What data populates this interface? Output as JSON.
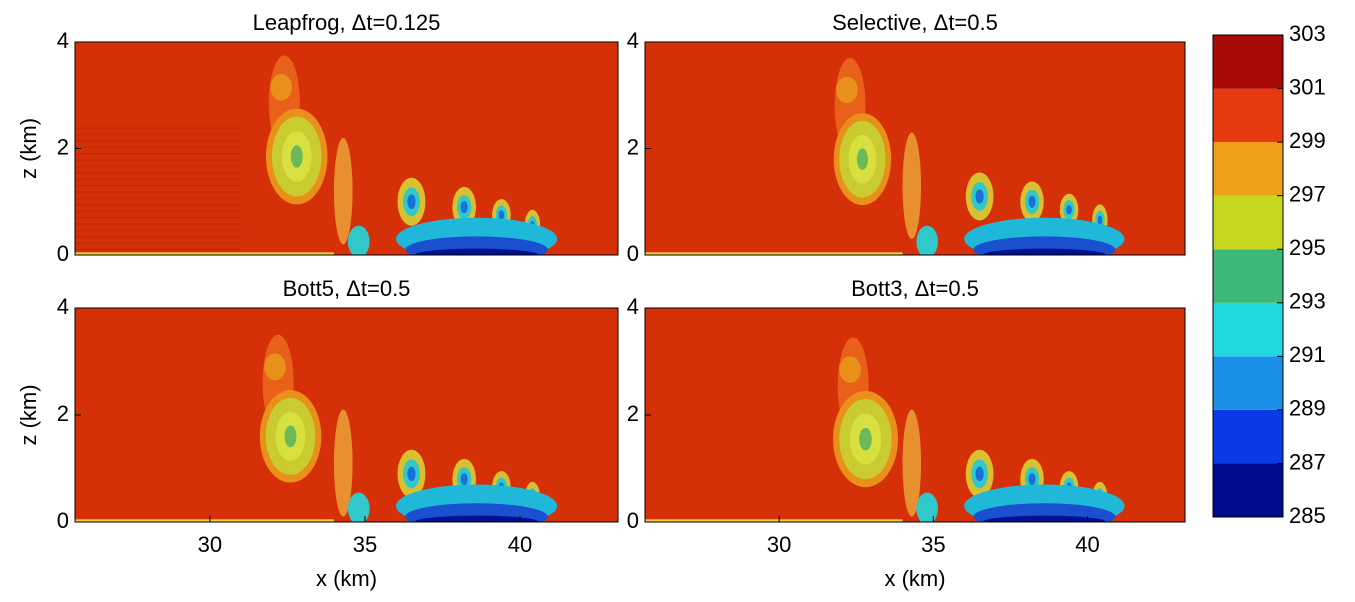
{
  "chart_data": [
    {
      "type": "heatmap",
      "title": "Leapfrog, Δt=0.125",
      "ylabel": "z (km)",
      "xlim": [
        25.65,
        43.16
      ],
      "ylim": [
        0,
        4
      ],
      "yticks": [
        0,
        2,
        4
      ]
    },
    {
      "type": "heatmap",
      "title": "Selective, Δt=0.5",
      "xlim": [
        25.65,
        43.16
      ],
      "ylim": [
        0,
        4
      ],
      "yticks": [
        0,
        2,
        4
      ]
    },
    {
      "type": "heatmap",
      "title": "Bott5, Δt=0.5",
      "ylabel": "z (km)",
      "xlabel": "x (km)",
      "xlim": [
        25.65,
        43.16
      ],
      "ylim": [
        0,
        4
      ],
      "xticks": [
        30,
        35,
        40
      ],
      "yticks": [
        0,
        2,
        4
      ]
    },
    {
      "type": "heatmap",
      "title": "Bott3, Δt=0.5",
      "xlabel": "x (km)",
      "xlim": [
        25.65,
        43.16
      ],
      "ylim": [
        0,
        4
      ],
      "xticks": [
        30,
        35,
        40
      ],
      "yticks": [
        0,
        2,
        4
      ]
    }
  ],
  "colorbar": {
    "ylim": [
      285,
      303
    ],
    "yticks": [
      285,
      287,
      289,
      291,
      293,
      295,
      297,
      299,
      301,
      303
    ],
    "colors": [
      "#000a8c",
      "#0a3ae6",
      "#1a90e8",
      "#20d8e0",
      "#3cb878",
      "#c8d820",
      "#f0a018",
      "#e63a10",
      "#a80a08"
    ]
  }
}
